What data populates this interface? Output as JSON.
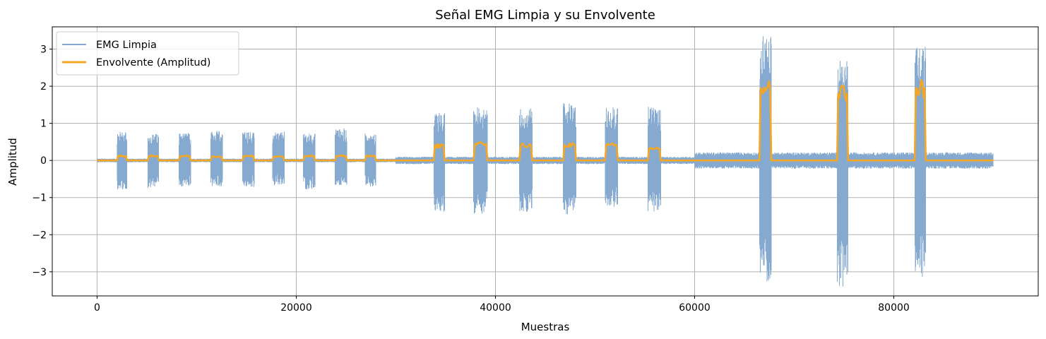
{
  "chart_data": {
    "type": "line",
    "title": "Señal EMG Limpia y su Envolvente",
    "xlabel": "Muestras",
    "ylabel": "Amplitud",
    "xlim": [
      -4500,
      94500
    ],
    "ylim": [
      -3.65,
      3.6
    ],
    "xticks": [
      0,
      20000,
      40000,
      60000,
      80000
    ],
    "xtick_labels": [
      "0",
      "20000",
      "40000",
      "60000",
      "80000"
    ],
    "yticks": [
      -3,
      -2,
      -1,
      0,
      1,
      2,
      3
    ],
    "ytick_labels": [
      "−3",
      "−2",
      "−1",
      "0",
      "1",
      "2",
      "3"
    ],
    "grid": true,
    "legend": {
      "position": "top-left"
    },
    "x_extent": [
      0,
      90000
    ],
    "series": [
      {
        "name": "EMG Limpia",
        "color": "#86aacf",
        "baseline_segments": [
          {
            "x": [
              0,
              30000
            ],
            "amplitude": 0.05
          },
          {
            "x": [
              30000,
              60000
            ],
            "amplitude": 0.1
          },
          {
            "x": [
              60000,
              90000
            ],
            "amplitude": 0.22
          }
        ],
        "bursts": [
          {
            "x": [
              2000,
              3000
            ],
            "max": 0.78,
            "min": -0.78
          },
          {
            "x": [
              5100,
              6200
            ],
            "max": 0.72,
            "min": -0.75
          },
          {
            "x": [
              8200,
              9400
            ],
            "max": 0.75,
            "min": -0.72
          },
          {
            "x": [
              11400,
              12600
            ],
            "max": 0.8,
            "min": -0.7
          },
          {
            "x": [
              14600,
              15800
            ],
            "max": 0.78,
            "min": -0.73
          },
          {
            "x": [
              17600,
              18800
            ],
            "max": 0.78,
            "min": -0.68
          },
          {
            "x": [
              20700,
              21900
            ],
            "max": 0.73,
            "min": -0.78
          },
          {
            "x": [
              23900,
              25100
            ],
            "max": 0.87,
            "min": -0.7
          },
          {
            "x": [
              26900,
              28000
            ],
            "max": 0.74,
            "min": -0.7
          },
          {
            "x": [
              33800,
              34900
            ],
            "max": 1.3,
            "min": -1.4
          },
          {
            "x": [
              37800,
              39200
            ],
            "max": 1.45,
            "min": -1.45
          },
          {
            "x": [
              42400,
              43700
            ],
            "max": 1.4,
            "min": -1.4
          },
          {
            "x": [
              46800,
              48100
            ],
            "max": 1.55,
            "min": -1.45
          },
          {
            "x": [
              51000,
              52300
            ],
            "max": 1.45,
            "min": -1.3
          },
          {
            "x": [
              55300,
              56600
            ],
            "max": 1.45,
            "min": -1.4
          },
          {
            "x": [
              66500,
              67700
            ],
            "max": 3.38,
            "min": -3.35
          },
          {
            "x": [
              74300,
              75400
            ],
            "max": 2.7,
            "min": -3.4
          },
          {
            "x": [
              82100,
              83200
            ],
            "max": 3.12,
            "min": -3.15
          }
        ]
      },
      {
        "name": "Envolvente (Amplitud)",
        "color": "#f5a623",
        "baseline": 0.0,
        "plateaus": [
          {
            "x": [
              2000,
              3000
            ],
            "level": 0.12
          },
          {
            "x": [
              5100,
              6200
            ],
            "level": 0.12
          },
          {
            "x": [
              8200,
              9400
            ],
            "level": 0.12
          },
          {
            "x": [
              11400,
              12600
            ],
            "level": 0.1
          },
          {
            "x": [
              14600,
              15800
            ],
            "level": 0.12
          },
          {
            "x": [
              17600,
              18800
            ],
            "level": 0.1
          },
          {
            "x": [
              20700,
              21900
            ],
            "level": 0.12
          },
          {
            "x": [
              23900,
              25100
            ],
            "level": 0.12
          },
          {
            "x": [
              26900,
              28000
            ],
            "level": 0.12
          },
          {
            "x": [
              33800,
              34900
            ],
            "level": 0.4
          },
          {
            "x": [
              37800,
              39200
            ],
            "level": 0.45
          },
          {
            "x": [
              42400,
              43700
            ],
            "level": 0.4
          },
          {
            "x": [
              46800,
              48100
            ],
            "level": 0.42
          },
          {
            "x": [
              51000,
              52300
            ],
            "level": 0.4
          },
          {
            "x": [
              55300,
              56600
            ],
            "level": 0.32
          },
          {
            "x": [
              66500,
              67700
            ],
            "level": 1.95
          },
          {
            "x": [
              74300,
              75400
            ],
            "level": 1.8
          },
          {
            "x": [
              82100,
              83200
            ],
            "level": 1.95
          }
        ]
      }
    ]
  }
}
